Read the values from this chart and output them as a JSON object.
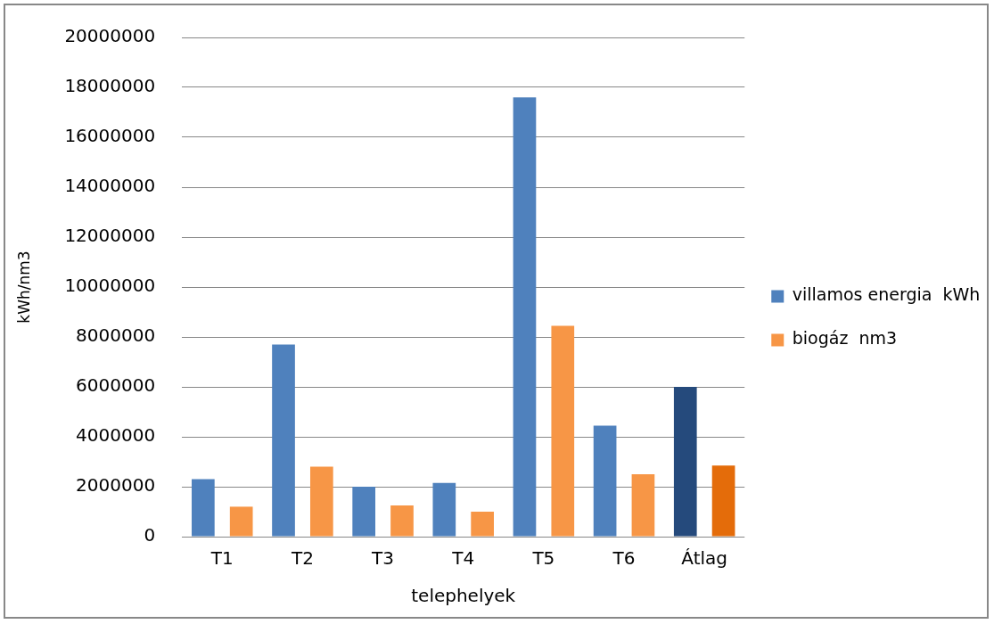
{
  "chart_data": {
    "type": "bar",
    "xlabel": "telephelyek",
    "ylabel": "kWh/nm3",
    "categories": [
      "T1",
      "T2",
      "T3",
      "T4",
      "T5",
      "T6",
      "Átlag"
    ],
    "series": [
      {
        "name": "villamos energia  kWh",
        "color": "#4f81bd",
        "colors": [
          "#4f81bd",
          "#4f81bd",
          "#4f81bd",
          "#4f81bd",
          "#4f81bd",
          "#4f81bd",
          "#254a7c"
        ],
        "values": [
          2300000,
          7700000,
          2000000,
          2150000,
          17600000,
          4450000,
          6000000
        ]
      },
      {
        "name": "biogáz  nm3",
        "color": "#f79646",
        "colors": [
          "#f79646",
          "#f79646",
          "#f79646",
          "#f79646",
          "#f79646",
          "#f79646",
          "#e46c0a"
        ],
        "values": [
          1200000,
          2800000,
          1250000,
          1000000,
          8450000,
          2500000,
          2850000
        ]
      }
    ],
    "ylim": [
      0,
      20000000
    ],
    "yticks": [
      0,
      2000000,
      4000000,
      6000000,
      8000000,
      10000000,
      12000000,
      14000000,
      16000000,
      18000000,
      20000000
    ],
    "grid": "y",
    "legend": "right"
  }
}
